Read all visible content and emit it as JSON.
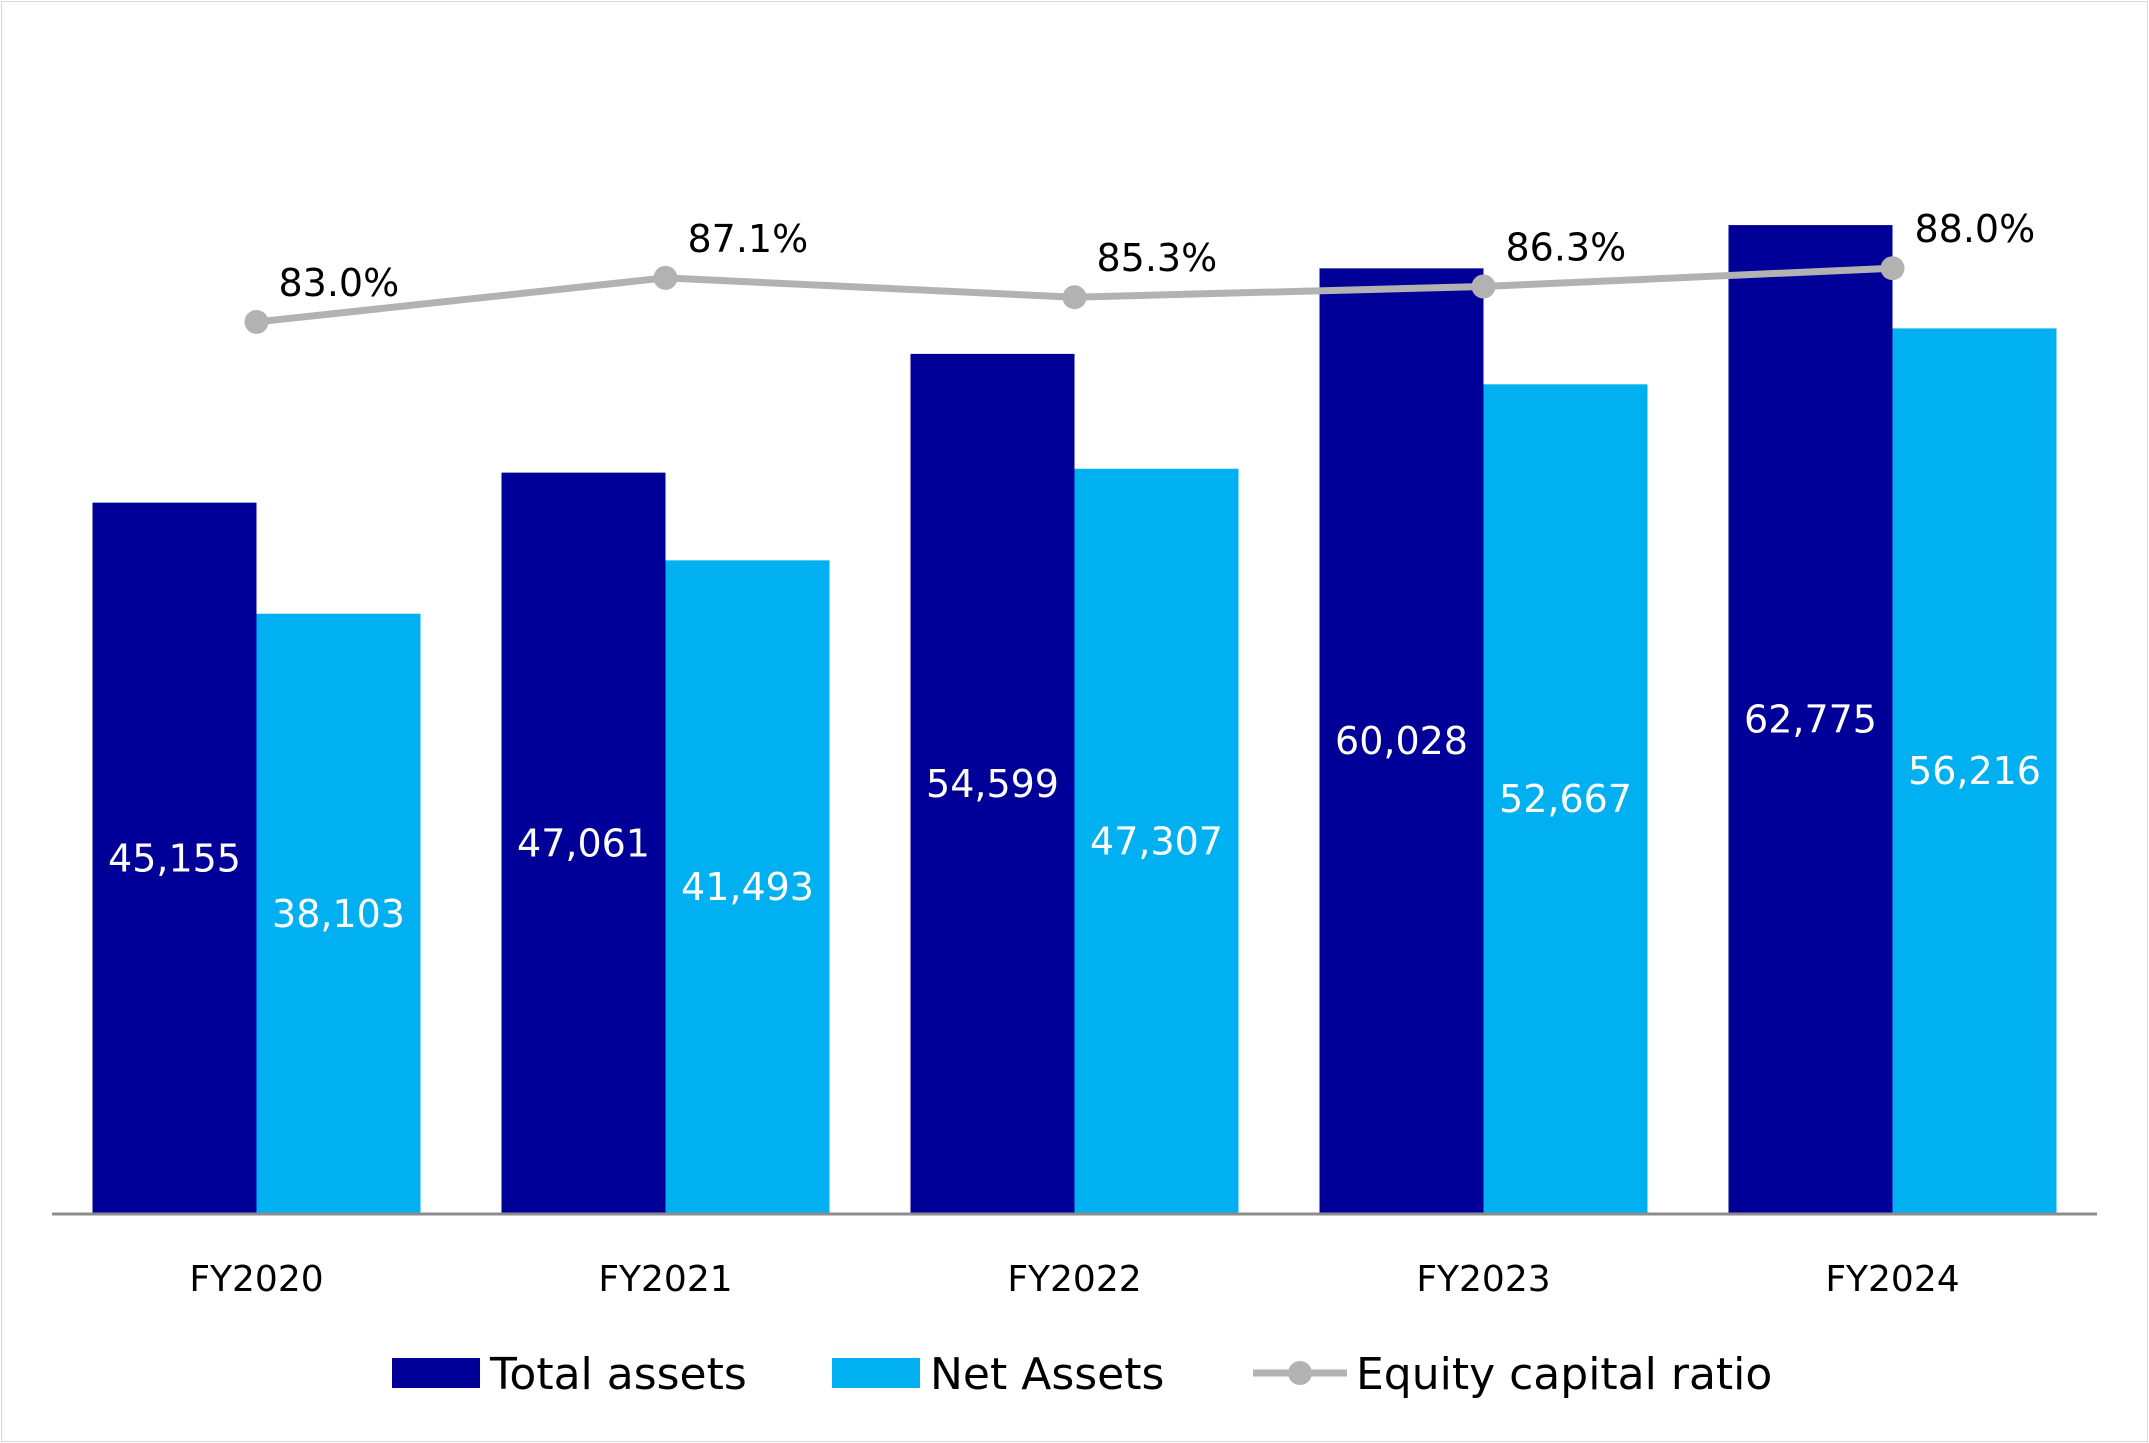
{
  "chart_data": {
    "type": "bar",
    "categories": [
      "FY2020",
      "FY2021",
      "FY2022",
      "FY2023",
      "FY2024"
    ],
    "series": [
      {
        "name": "Total assets",
        "type": "bar",
        "axis": "left",
        "color": "#000099",
        "values": [
          45155,
          47061,
          54599,
          60028,
          62775
        ],
        "labels": [
          "45,155",
          "47,061",
          "54,599",
          "60,028",
          "62,775"
        ]
      },
      {
        "name": "Net Assets",
        "type": "bar",
        "axis": "left",
        "color": "#00B0F0",
        "values": [
          38103,
          41493,
          47307,
          52667,
          56216
        ],
        "labels": [
          "38,103",
          "41,493",
          "47,307",
          "52,667",
          "56,216"
        ]
      },
      {
        "name": "Equity capital ratio",
        "type": "line",
        "axis": "right",
        "color": "#B2B2B2",
        "values": [
          83.0,
          87.1,
          85.3,
          86.3,
          88.0
        ],
        "labels": [
          "83.0%",
          "87.1%",
          "85.3%",
          "86.3%",
          "88.0%"
        ]
      }
    ],
    "ylim": [
      0,
      73000
    ],
    "y2lim": [
      0,
      107
    ],
    "axes_visible": false,
    "grid": false,
    "legend_position": "bottom",
    "title": "",
    "xlabel": "",
    "ylabel": ""
  }
}
